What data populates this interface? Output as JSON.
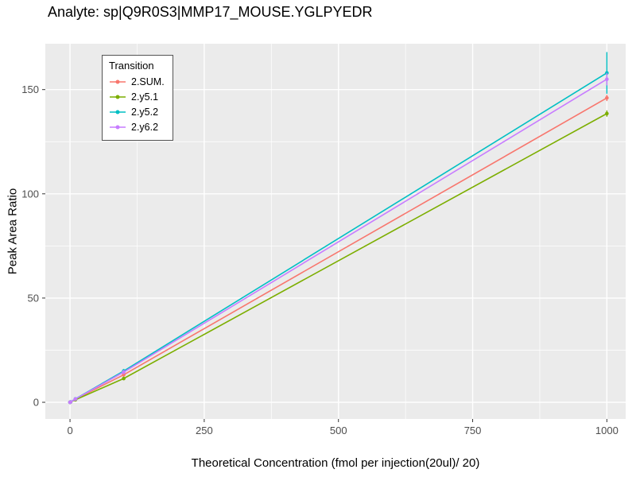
{
  "chart_data": {
    "type": "line",
    "title": "Analyte: sp|Q9R0S3|MMP17_MOUSE.YGLPYEDR",
    "xlabel": "Theoretical Concentration (fmol per injection(20ul)/ 20)",
    "ylabel": "Peak Area Ratio",
    "legend_title": "Transition",
    "legend_position": "inside-top-left",
    "grid": true,
    "panel_background": "#EBEBEB",
    "grid_color": "#FFFFFF",
    "xlim": [
      -46,
      1035
    ],
    "ylim": [
      -8,
      172
    ],
    "xticks": [
      0,
      250,
      500,
      750,
      1000
    ],
    "xticks_minor": [
      125,
      375,
      625,
      875
    ],
    "yticks": [
      0,
      50,
      100,
      150
    ],
    "yticks_minor": [
      25,
      75,
      125
    ],
    "x": [
      0,
      1,
      10,
      100,
      1000
    ],
    "series": [
      {
        "name": "2.SUM.",
        "color": "#F8766D",
        "values": [
          0,
          0.15,
          1.5,
          13.2,
          146
        ],
        "yerr": [
          0,
          0,
          0,
          2.2,
          1.5
        ]
      },
      {
        "name": "2.y5.1",
        "color": "#7CAE00",
        "values": [
          0,
          0.12,
          1.2,
          11.4,
          138.5
        ],
        "yerr": [
          0,
          0,
          0,
          0.8,
          1.5
        ]
      },
      {
        "name": "2.y5.2",
        "color": "#00BFC4",
        "values": [
          0,
          0.16,
          1.6,
          15.0,
          158
        ],
        "yerr": [
          0,
          0,
          0,
          1.0,
          10
        ]
      },
      {
        "name": "2.y6.2",
        "color": "#C77CFF",
        "values": [
          0,
          0.15,
          1.55,
          14.5,
          155
        ],
        "yerr": [
          0,
          0,
          0,
          1.0,
          3
        ]
      }
    ]
  }
}
